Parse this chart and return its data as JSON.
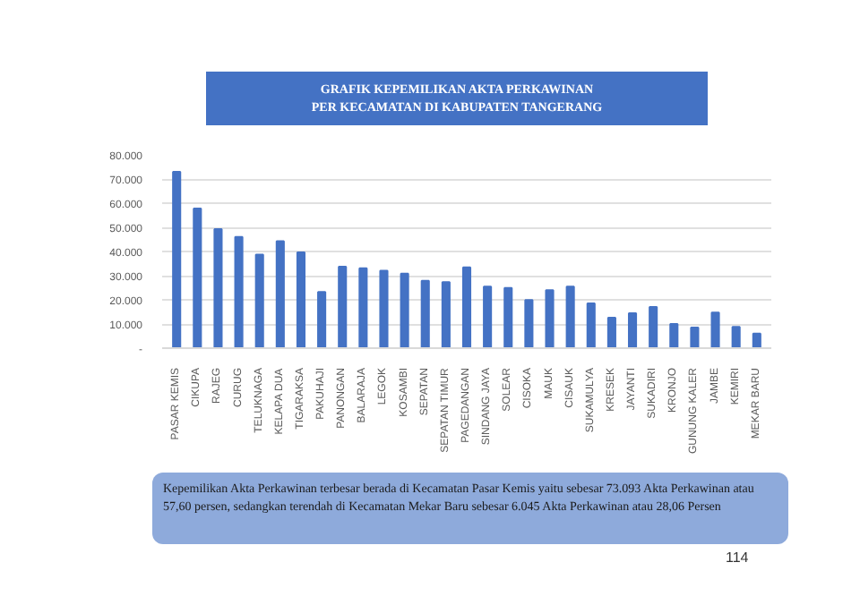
{
  "chart_data": {
    "type": "bar",
    "title": "GRAFIK KEPEMILIKAN AKTA PERKAWINAN\nPER KECAMATAN DI KABUPATEN TANGERANG",
    "categories": [
      "PASAR KEMIS",
      "CIKUPA",
      "RAJEG",
      "CURUG",
      "TELUKNAGA",
      "KELAPA DUA",
      "TIGARAKSA",
      "PAKUHAJI",
      "PANONGAN",
      "BALARAJA",
      "LEGOK",
      "KOSAMBI",
      "SEPATAN",
      "SEPATAN TIMUR",
      "PAGEDANGAN",
      "SINDANG JAYA",
      "SOLEAR",
      "CISOKA",
      "MAUK",
      "CISAUK",
      "SUKAMULYA",
      "KRESEK",
      "JAYANTI",
      "SUKADIRI",
      "KRONJO",
      "GUNUNG KALER",
      "JAMBE",
      "KEMIRI",
      "MEKAR BARU"
    ],
    "values": [
      73000,
      57800,
      49300,
      46000,
      38700,
      44300,
      39600,
      23200,
      33700,
      33100,
      32000,
      30800,
      27900,
      27300,
      33400,
      25500,
      24900,
      19900,
      24000,
      25500,
      18500,
      12600,
      14400,
      17000,
      10000,
      8500,
      14700,
      8800,
      6000
    ],
    "color": "#4472c4",
    "ylim": [
      0,
      80000
    ],
    "yticks": [
      {
        "value": 0,
        "label": "-"
      },
      {
        "value": 10000,
        "label": "10.000"
      },
      {
        "value": 20000,
        "label": "20.000"
      },
      {
        "value": 30000,
        "label": "30.000"
      },
      {
        "value": 40000,
        "label": "40.000"
      },
      {
        "value": 50000,
        "label": "50.000"
      },
      {
        "value": 60000,
        "label": "60.000"
      },
      {
        "value": 70000,
        "label": "70.000"
      },
      {
        "value": 80000,
        "label": "80.000"
      }
    ],
    "grid": "y",
    "annotations": [
      "Kepemilikan Akta Perkawinan terbesar berada di Kecamatan Pasar Kemis yaitu sebesar 73.093 Akta Perkawinan atau 57,60 persen, sedangkan terendah di Kecamatan Mekar Baru sebesar 6.045 Akta Perkawinan atau 28,06 Persen",
      "114"
    ]
  }
}
